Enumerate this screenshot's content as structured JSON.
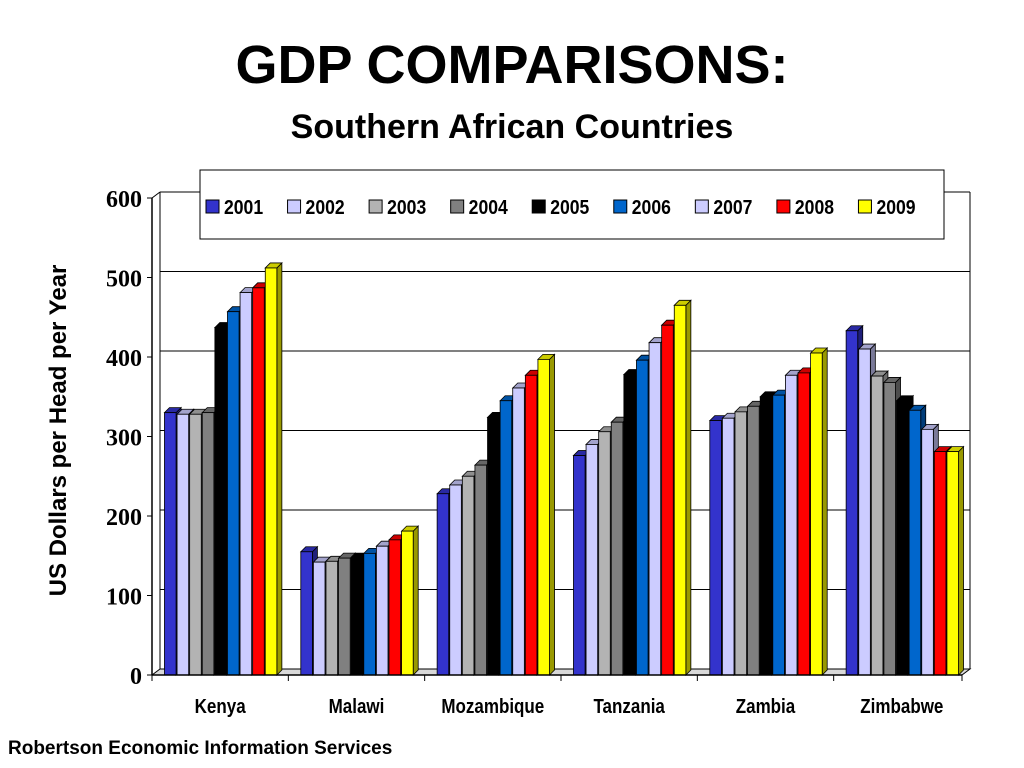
{
  "title": "GDP COMPARISONS:",
  "subtitle": "Southern African Countries",
  "footer": "Robertson Economic Information Services",
  "colors": {
    "2001": "#3333cc",
    "2002": "#ccccff",
    "2003": "#b3b3b3",
    "2004": "#808080",
    "2005": "#000000",
    "2006": "#0066cc",
    "2007": "#ccccff",
    "2008": "#ff0000",
    "2009": "#ffff00"
  },
  "chart_data": {
    "type": "bar",
    "title": "GDP COMPARISONS:",
    "subtitle": "Southern African Countries",
    "ylabel": "US Dollars per Head per Year",
    "xlabel": "",
    "ylim": [
      0,
      600
    ],
    "yticks": [
      "0",
      "100",
      "200",
      "300",
      "400",
      "500",
      "600"
    ],
    "grid": true,
    "legend": "top",
    "categories": [
      "Kenya",
      "Malawi",
      "Mozambique",
      "Tanzania",
      "Zambia",
      "Zimbabwe"
    ],
    "series": [
      {
        "name": "2001",
        "values": [
          330,
          155,
          228,
          276,
          320,
          433
        ]
      },
      {
        "name": "2002",
        "values": [
          328,
          142,
          239,
          290,
          323,
          410
        ]
      },
      {
        "name": "2003",
        "values": [
          328,
          143,
          250,
          306,
          331,
          376
        ]
      },
      {
        "name": "2004",
        "values": [
          330,
          147,
          264,
          318,
          338,
          368
        ]
      },
      {
        "name": "2005",
        "values": [
          437,
          147,
          324,
          378,
          350,
          345
        ]
      },
      {
        "name": "2006",
        "values": [
          457,
          153,
          345,
          396,
          352,
          333
        ]
      },
      {
        "name": "2007",
        "values": [
          481,
          162,
          361,
          418,
          377,
          309
        ]
      },
      {
        "name": "2008",
        "values": [
          487,
          170,
          377,
          440,
          380,
          281
        ]
      },
      {
        "name": "2009",
        "values": [
          512,
          181,
          397,
          465,
          405,
          281
        ]
      }
    ]
  }
}
